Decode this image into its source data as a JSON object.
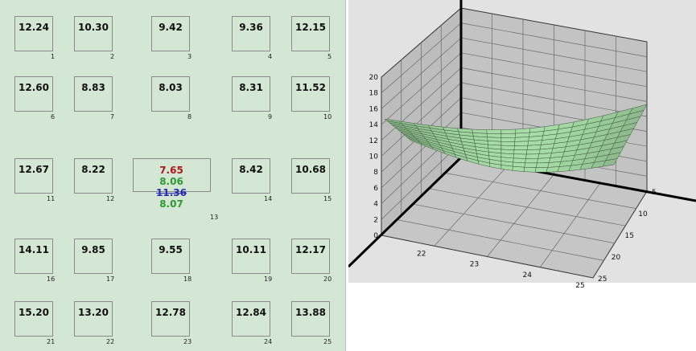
{
  "sensor_grid": {
    "cells": [
      {
        "index": "1",
        "value": "12.24"
      },
      {
        "index": "2",
        "value": "10.30"
      },
      {
        "index": "3",
        "value": "9.42"
      },
      {
        "index": "4",
        "value": "9.36"
      },
      {
        "index": "5",
        "value": "12.15"
      },
      {
        "index": "6",
        "value": "12.60"
      },
      {
        "index": "7",
        "value": "8.83"
      },
      {
        "index": "8",
        "value": "8.03"
      },
      {
        "index": "9",
        "value": "8.31"
      },
      {
        "index": "10",
        "value": "11.52"
      },
      {
        "index": "11",
        "value": "12.67"
      },
      {
        "index": "12",
        "value": "8.22"
      },
      {
        "index": "13",
        "value": ""
      },
      {
        "index": "14",
        "value": "8.42"
      },
      {
        "index": "15",
        "value": "10.68"
      },
      {
        "index": "16",
        "value": "14.11"
      },
      {
        "index": "17",
        "value": "9.85"
      },
      {
        "index": "18",
        "value": "9.55"
      },
      {
        "index": "19",
        "value": "10.11"
      },
      {
        "index": "20",
        "value": "12.17"
      },
      {
        "index": "21",
        "value": "15.20"
      },
      {
        "index": "22",
        "value": "13.20"
      },
      {
        "index": "23",
        "value": "12.78"
      },
      {
        "index": "24",
        "value": "12.84"
      },
      {
        "index": "25",
        "value": "13.88"
      }
    ],
    "center_values": [
      {
        "value": "7.65",
        "color": "#b01818"
      },
      {
        "value": "8.06",
        "color": "#2e9a2e"
      },
      {
        "value": "11.36",
        "color": "#2a2ab0"
      },
      {
        "value": "8.07",
        "color": "#2e9a2e"
      }
    ]
  },
  "surface_plot": {
    "z_ticks": [
      "0",
      "2",
      "4",
      "6",
      "8",
      "10",
      "12",
      "14",
      "16",
      "18",
      "20"
    ],
    "x_ticks": [
      "22",
      "23",
      "24",
      "25"
    ],
    "y_ticks": [
      "5",
      "10",
      "15",
      "20",
      "25"
    ],
    "surface_color": "#a8dca8",
    "wall_color": "#bdbdbd",
    "floor_color": "#c6c6c6"
  }
}
